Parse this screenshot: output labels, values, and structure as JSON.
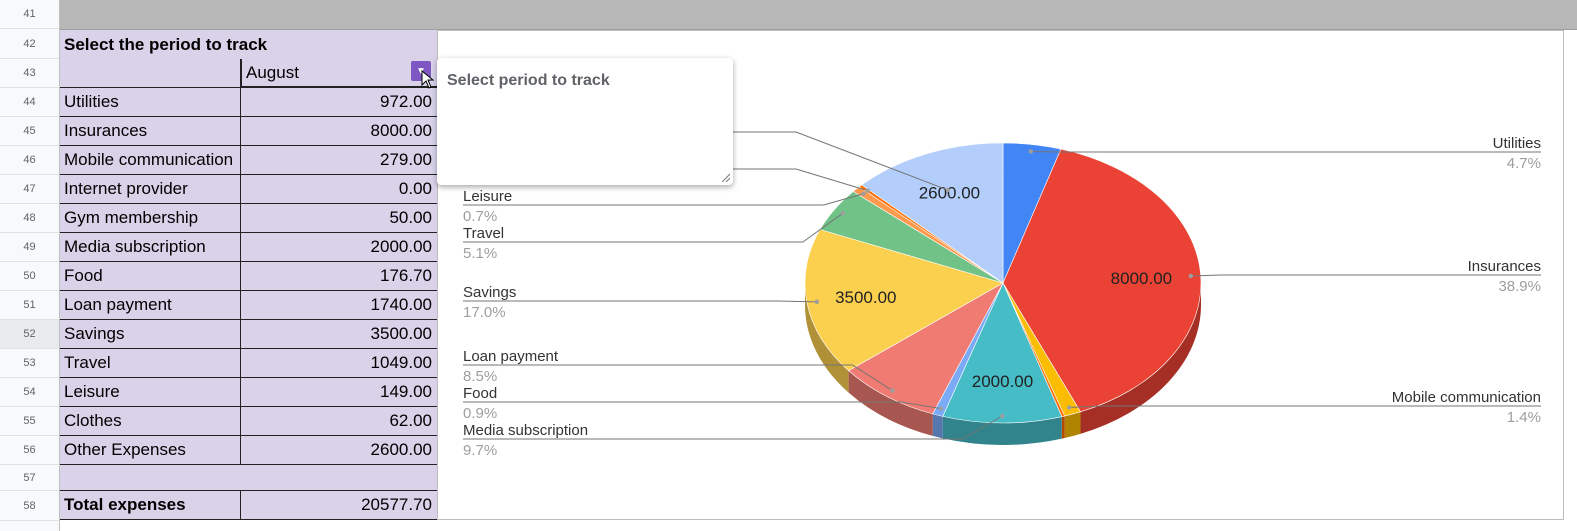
{
  "row_numbers": [
    "41",
    "42",
    "43",
    "44",
    "45",
    "46",
    "47",
    "48",
    "49",
    "50",
    "51",
    "52",
    "53",
    "54",
    "55",
    "56",
    "57",
    "58"
  ],
  "table": {
    "header": "Select the period to track",
    "period_value": "August",
    "rows": [
      {
        "label": "Utilities",
        "value": "972.00"
      },
      {
        "label": "Insurances",
        "value": "8000.00"
      },
      {
        "label": "Mobile communication",
        "value": "279.00"
      },
      {
        "label": "Internet provider",
        "value": "0.00"
      },
      {
        "label": "Gym membership",
        "value": "50.00"
      },
      {
        "label": "Media subscription",
        "value": "2000.00"
      },
      {
        "label": "Food",
        "value": "176.70"
      },
      {
        "label": "Loan payment",
        "value": "1740.00"
      },
      {
        "label": "Savings",
        "value": "3500.00"
      },
      {
        "label": "Travel",
        "value": "1049.00"
      },
      {
        "label": "Leisure",
        "value": "149.00"
      },
      {
        "label": "Clothes",
        "value": "62.00"
      },
      {
        "label": "Other Expenses",
        "value": "2600.00"
      }
    ],
    "total_label": "Total expenses",
    "total_value": "20577.70"
  },
  "note": {
    "text": "Select period to track"
  },
  "colors": {
    "cell_bg": "#d9d2e9",
    "dropdown": "#7e57c2"
  },
  "chart_data": {
    "type": "pie",
    "slices": [
      {
        "label": "Utilities",
        "value": 972.0,
        "percent": "4.7%",
        "color": "#4285f4",
        "dark": "#2f5fb0"
      },
      {
        "label": "Insurances",
        "value": 8000.0,
        "percent": "38.9%",
        "color": "#ea4335",
        "dark": "#a52f25"
      },
      {
        "label": "Mobile communication",
        "value": 279.0,
        "percent": "1.4%",
        "color": "#fbbc04",
        "dark": "#b08400"
      },
      {
        "label": "Internet provider",
        "value": 0.0,
        "percent": "",
        "color": "#34a853",
        "dark": "#247539"
      },
      {
        "label": "Gym membership",
        "value": 50.0,
        "percent": "",
        "color": "#ff6d01",
        "dark": "#b34c00"
      },
      {
        "label": "Media subscription",
        "value": 2000.0,
        "percent": "9.7%",
        "color": "#46bdc6",
        "dark": "#31848b"
      },
      {
        "label": "Food",
        "value": 176.7,
        "percent": "0.9%",
        "color": "#7baaf7",
        "dark": "#5677ad"
      },
      {
        "label": "Loan payment",
        "value": 1740.0,
        "percent": "8.5%",
        "color": "#f07b72",
        "dark": "#a85650"
      },
      {
        "label": "Savings",
        "value": 3500.0,
        "percent": "17.0%",
        "color": "#fcd04f",
        "dark": "#b09137"
      },
      {
        "label": "Travel",
        "value": 1049.0,
        "percent": "5.1%",
        "color": "#71c287",
        "dark": "#4f885f"
      },
      {
        "label": "Leisure",
        "value": 149.0,
        "percent": "0.7%",
        "color": "#ff994d",
        "dark": "#b36b36"
      },
      {
        "label": "Clothes",
        "value": 62.0,
        "percent": "",
        "color": "#ff6d01",
        "dark": "#b34c00"
      },
      {
        "label": "Other Expenses",
        "value": 2600.0,
        "percent": "",
        "color": "#b3cefb",
        "dark": "#7d90b0"
      }
    ],
    "data_labels": [
      "8000.00",
      "3500.00",
      "2600.00",
      "2000.00"
    ],
    "legend": "callouts",
    "three_d": true
  }
}
